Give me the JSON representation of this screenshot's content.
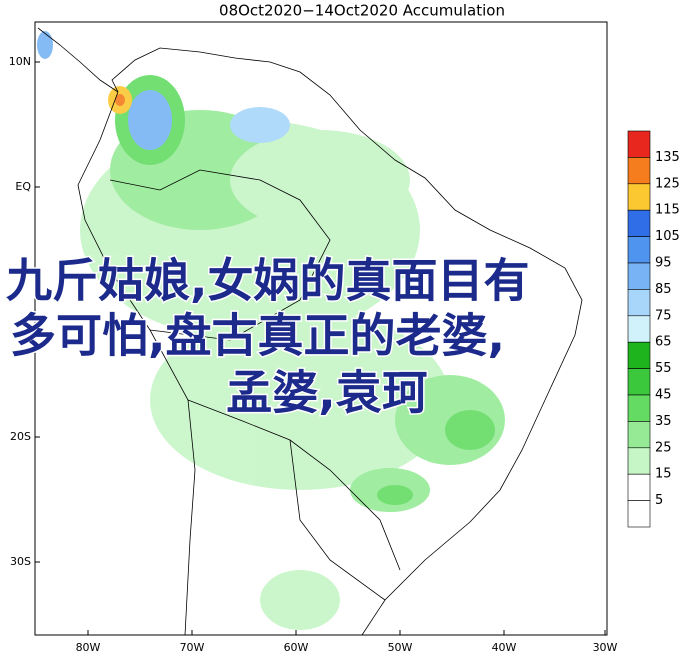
{
  "title": "08Oct2020−14Oct2020 Accumulation",
  "overlay": {
    "lines": [
      "九斤姑娘,女娲的真面目有",
      "多可怕,盘古真正的老婆,",
      "孟婆,袁珂"
    ]
  },
  "latitude_labels": [
    "10N",
    "EQ",
    "20S",
    "30S"
  ],
  "longitude_labels": [
    "80W",
    "70W",
    "60W",
    "50W",
    "40W",
    "30W"
  ],
  "legend": {
    "levels": [
      135,
      125,
      115,
      105,
      95,
      85,
      75,
      65,
      55,
      45,
      35,
      25,
      15,
      5
    ],
    "colors": [
      "#e8281e",
      "#f57d1e",
      "#fbc832",
      "#2f6ee6",
      "#4f94ef",
      "#78b4f5",
      "#a8d6fa",
      "#d2f2fb",
      "#1eb41e",
      "#3cc83c",
      "#64dc64",
      "#96ea96",
      "#c6f5c6",
      "#ffffff"
    ]
  }
}
